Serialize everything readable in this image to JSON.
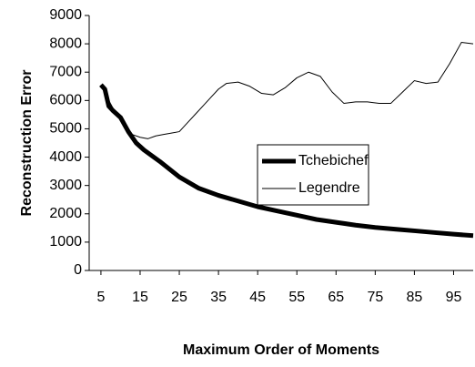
{
  "chart_data": {
    "type": "line",
    "x_label": "Maximum Order of Moments",
    "y_label": "Reconstruction Error",
    "xlim": [
      2,
      100
    ],
    "xticks": [
      5,
      15,
      25,
      35,
      45,
      55,
      65,
      75,
      85,
      95
    ],
    "ylim": [
      0,
      9000
    ],
    "yticks": [
      0,
      1000,
      2000,
      3000,
      4000,
      5000,
      6000,
      7000,
      8000,
      9000
    ],
    "legend": "center",
    "series": [
      {
        "name": "Tchebichef",
        "color": "#000000",
        "width": 5,
        "x": [
          5,
          6,
          7,
          8,
          10,
          12,
          14,
          16,
          20,
          25,
          30,
          35,
          40,
          45,
          50,
          55,
          60,
          65,
          70,
          75,
          80,
          85,
          90,
          95,
          100
        ],
        "values": [
          6550,
          6400,
          5800,
          5650,
          5400,
          4900,
          4500,
          4250,
          3850,
          3300,
          2900,
          2650,
          2450,
          2250,
          2100,
          1950,
          1800,
          1700,
          1600,
          1520,
          1460,
          1400,
          1340,
          1280,
          1230
        ]
      },
      {
        "name": "Legendre",
        "color": "#000000",
        "width": 1,
        "x": [
          5,
          7,
          9,
          11,
          13,
          15,
          17,
          19,
          21,
          23,
          25,
          27,
          29,
          31,
          33,
          35,
          37,
          40,
          43,
          46,
          49,
          52,
          55,
          58,
          61,
          64,
          67,
          70,
          73,
          76,
          79,
          82,
          85,
          88,
          91,
          94,
          97,
          100
        ],
        "values": [
          6550,
          6000,
          5500,
          5100,
          4800,
          4700,
          4650,
          4750,
          4800,
          4850,
          4900,
          5200,
          5500,
          5800,
          6100,
          6400,
          6600,
          6650,
          6500,
          6250,
          6200,
          6450,
          6800,
          7000,
          6850,
          6300,
          5900,
          5950,
          5950,
          5900,
          5900,
          6300,
          6700,
          6600,
          6650,
          7300,
          8050,
          8000
        ]
      }
    ]
  }
}
